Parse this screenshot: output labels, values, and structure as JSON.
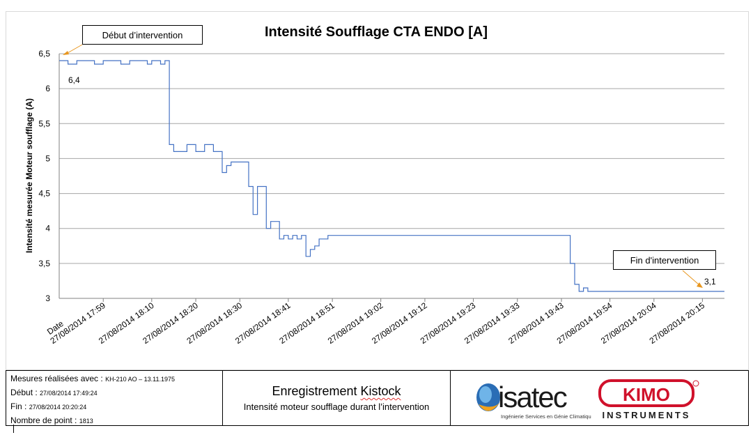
{
  "chart_data": {
    "type": "line",
    "title": "Intensité Soufflage CTA ENDO [A]",
    "xlabel": "Date",
    "ylabel": "Intensité mesurée Moteur soufflage (A)",
    "ylim": [
      3,
      6.5
    ],
    "yticks": [
      3,
      3.5,
      4,
      4.5,
      5,
      5.5,
      6,
      6.5
    ],
    "ytick_labels": [
      "3",
      "3,5",
      "4",
      "4,5",
      "5",
      "5,5",
      "6",
      "6,5"
    ],
    "grid": true,
    "legend": "none",
    "color": "#4472c4",
    "x_range": [
      "27/08/2014 17:49:24",
      "27/08/2014 20:20:24"
    ],
    "xtick_labels": [
      "27/08/2014 17:59",
      "27/08/2014 18:10",
      "27/08/2014 18:20",
      "27/08/2014 18:30",
      "27/08/2014 18:41",
      "27/08/2014 18:51",
      "27/08/2014 19:02",
      "27/08/2014 19:12",
      "27/08/2014 19:23",
      "27/08/2014 19:33",
      "27/08/2014 19:43",
      "27/08/2014 19:54",
      "27/08/2014 20:04",
      "27/08/2014 20:15"
    ],
    "series": [
      {
        "x": [
          "17:49",
          "17:51",
          "17:53",
          "17:55",
          "17:57",
          "17:59",
          "18:01",
          "18:03",
          "18:05",
          "18:07",
          "18:09",
          "18:10",
          "18:11",
          "18:12",
          "18:13",
          "18:14",
          "18:14",
          "18:15",
          "18:18",
          "18:20",
          "18:22",
          "18:24",
          "18:25",
          "18:26",
          "18:27",
          "18:28",
          "18:30",
          "18:31",
          "18:32",
          "18:32",
          "18:33",
          "18:34",
          "18:35",
          "18:36",
          "18:37",
          "18:38",
          "18:39",
          "18:40",
          "18:41",
          "18:42",
          "18:43",
          "18:44",
          "18:45",
          "18:46",
          "18:47",
          "18:48",
          "18:50",
          "18:55",
          "19:00",
          "19:05",
          "19:10",
          "19:15",
          "19:20",
          "19:25",
          "19:30",
          "19:35",
          "19:40",
          "19:44",
          "19:45",
          "19:46",
          "19:47",
          "19:48",
          "19:49",
          "19:50",
          "19:55",
          "20:00",
          "20:05",
          "20:10",
          "20:15",
          "20:18",
          "20:20"
        ],
        "values": [
          6.4,
          6.35,
          6.4,
          6.4,
          6.35,
          6.4,
          6.4,
          6.35,
          6.4,
          6.4,
          6.35,
          6.4,
          6.4,
          6.35,
          6.4,
          6.3,
          5.2,
          5.1,
          5.2,
          5.1,
          5.2,
          5.1,
          5.1,
          4.8,
          4.9,
          4.95,
          4.95,
          4.95,
          4.9,
          4.6,
          4.2,
          4.6,
          4.6,
          4.0,
          4.1,
          4.1,
          3.85,
          3.9,
          3.85,
          3.9,
          3.85,
          3.9,
          3.6,
          3.7,
          3.75,
          3.85,
          3.9,
          3.9,
          3.9,
          3.9,
          3.9,
          3.9,
          3.9,
          3.9,
          3.9,
          3.9,
          3.9,
          3.9,
          3.5,
          3.2,
          3.1,
          3.15,
          3.1,
          3.1,
          3.1,
          3.1,
          3.1,
          3.1,
          3.1,
          3.1,
          3.1
        ]
      }
    ],
    "annotations": [
      {
        "text": "Début d’intervention",
        "value_label": "6,4"
      },
      {
        "text": "Fin d'intervention",
        "value_label": "3,1"
      }
    ]
  },
  "info": {
    "mesures_label": "Mesures réalisées avec :",
    "mesures_value": "KH-210 AO – 13.11.1975",
    "debut_label": "Début :",
    "debut_value": "27/08/2014 17:49:24",
    "fin_label": "Fin :",
    "fin_value": "27/08/2014 20:20:24",
    "points_label": "Nombre de point :",
    "points_value": "1813",
    "center_title_1": "Enregistrement ",
    "center_title_2": "Kistock",
    "center_subtitle": "Intensité moteur soufflage durant l’intervention"
  },
  "logos": {
    "isatec_text": "isatec",
    "isatec_tagline": "Ingénierie Services en Génie Climatique",
    "kimo_text": "KIMO",
    "kimo_sub": "INSTRUMENTS",
    "kimo_color": "#d0112b",
    "isatec_color": "#1a1a1a"
  }
}
